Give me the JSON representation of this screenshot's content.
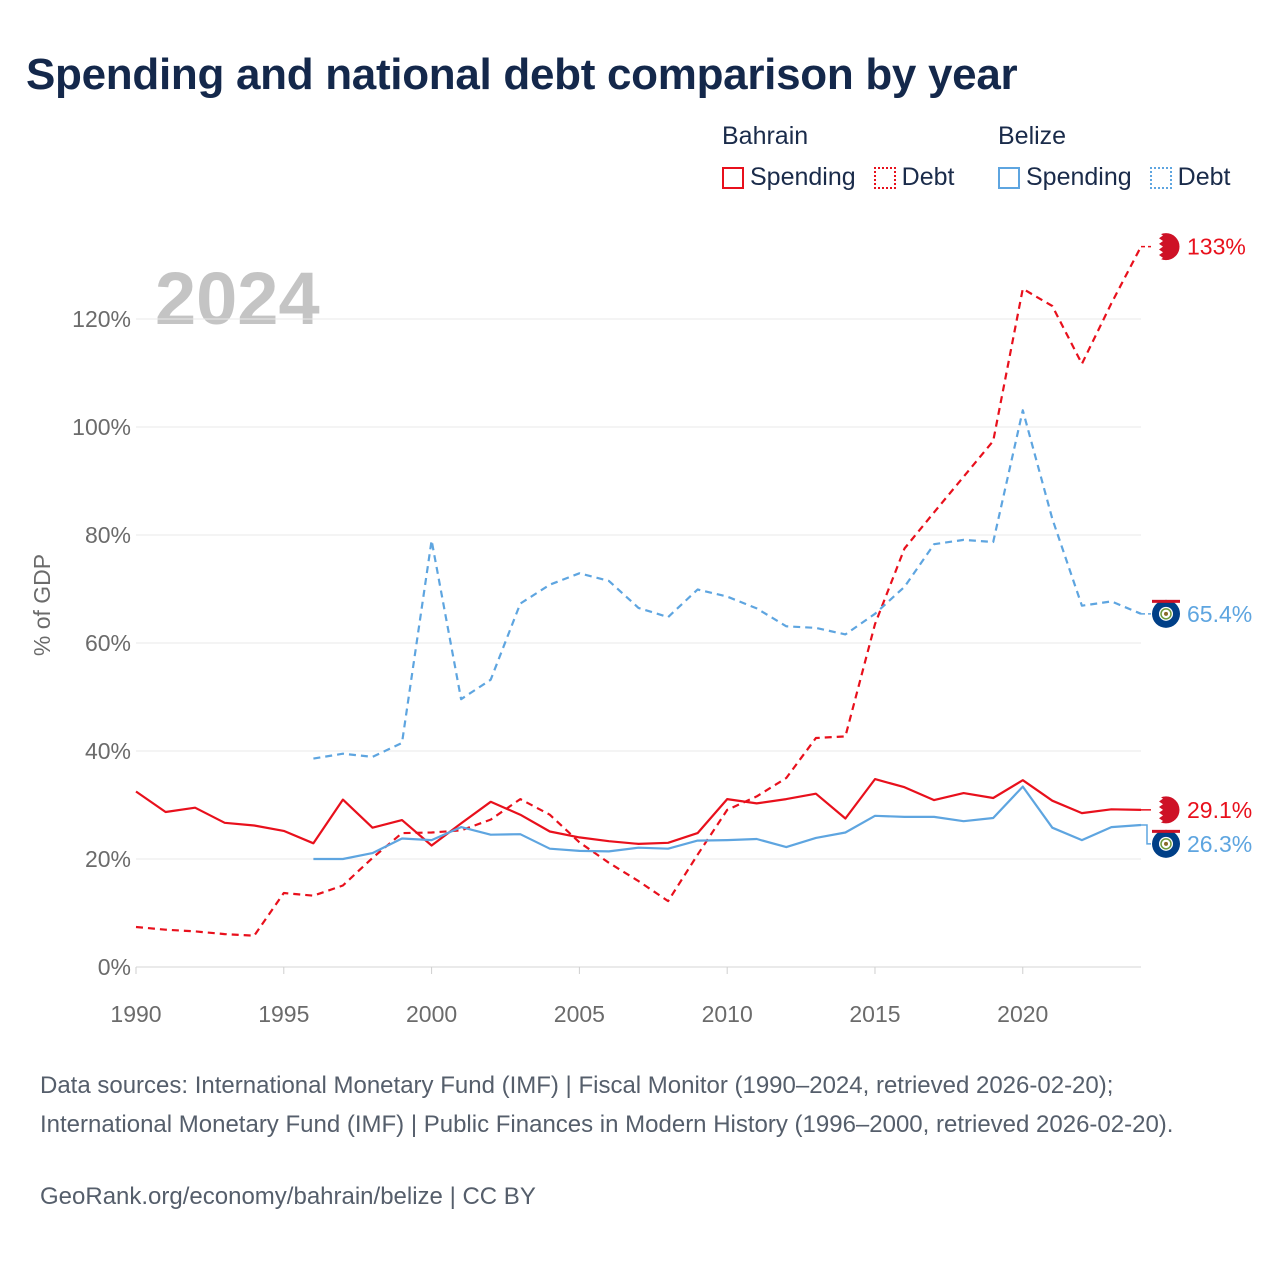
{
  "title": "Spending and national debt comparison by year",
  "legend": {
    "groups": [
      {
        "name": "Bahrain",
        "color": "#e8101c",
        "items": [
          {
            "label": "Spending",
            "style": "solid"
          },
          {
            "label": "Debt",
            "style": "dotted"
          }
        ]
      },
      {
        "name": "Belize",
        "color": "#5ea5e0",
        "items": [
          {
            "label": "Spending",
            "style": "solid"
          },
          {
            "label": "Debt",
            "style": "dotted"
          }
        ]
      }
    ]
  },
  "year_watermark": "2024",
  "footer": {
    "sources": "Data sources: International Monetary Fund (IMF) | Fiscal Monitor (1990–2024, retrieved 2026-02-20); International Monetary Fund (IMF) | Public Finances in Modern History (1996–2000, retrieved 2026-02-20).",
    "credit": "GeoRank.org/economy/bahrain/belize | CC BY"
  },
  "chart_data": {
    "type": "line",
    "title": "Spending and national debt comparison by year",
    "xlabel": "",
    "ylabel": "% of GDP",
    "xlim": [
      1990,
      2024
    ],
    "ylim": [
      0,
      135
    ],
    "x_ticks": [
      1990,
      1995,
      2000,
      2005,
      2010,
      2015,
      2020
    ],
    "y_ticks": [
      0,
      20,
      40,
      60,
      80,
      100,
      120
    ],
    "y_tick_labels": [
      "0%",
      "20%",
      "40%",
      "60%",
      "80%",
      "100%",
      "120%"
    ],
    "grid": "horizontal",
    "series": [
      {
        "name": "Bahrain Debt",
        "country": "Bahrain",
        "metric": "Debt",
        "color": "#e8101c",
        "dash": true,
        "end_label": "133%",
        "x": [
          1990,
          1991,
          1992,
          1993,
          1994,
          1995,
          1996,
          1997,
          1998,
          1999,
          2000,
          2001,
          2002,
          2003,
          2004,
          2005,
          2006,
          2007,
          2008,
          2009,
          2010,
          2011,
          2012,
          2013,
          2014,
          2015,
          2016,
          2017,
          2018,
          2019,
          2020,
          2021,
          2022,
          2023,
          2024
        ],
        "values": [
          7.4,
          6.9,
          6.6,
          6.1,
          5.8,
          13.7,
          13.2,
          15.1,
          20.2,
          24.8,
          24.9,
          25.3,
          27.3,
          31.1,
          28.2,
          23.1,
          19.3,
          15.9,
          12.2,
          20.8,
          29.1,
          31.6,
          35.0,
          42.4,
          42.7,
          63.5,
          77.5,
          84.2,
          90.8,
          97.4,
          125.6,
          122.4,
          111.7,
          122.9,
          133.4
        ]
      },
      {
        "name": "Bahrain Spending",
        "country": "Bahrain",
        "metric": "Spending",
        "color": "#e8101c",
        "dash": false,
        "end_label": "29.1%",
        "x": [
          1990,
          1991,
          1992,
          1993,
          1994,
          1995,
          1996,
          1997,
          1998,
          1999,
          2000,
          2001,
          2002,
          2003,
          2004,
          2005,
          2006,
          2007,
          2008,
          2009,
          2010,
          2011,
          2012,
          2013,
          2014,
          2015,
          2016,
          2017,
          2018,
          2019,
          2020,
          2021,
          2022,
          2023,
          2024
        ],
        "values": [
          32.5,
          28.7,
          29.5,
          26.7,
          26.2,
          25.2,
          22.9,
          31.0,
          25.8,
          27.2,
          22.5,
          26.6,
          30.6,
          28.2,
          25.1,
          24.0,
          23.3,
          22.8,
          23.0,
          24.8,
          31.1,
          30.3,
          31.1,
          32.1,
          27.5,
          34.8,
          33.3,
          30.9,
          32.2,
          31.3,
          34.6,
          30.8,
          28.5,
          29.2,
          29.1
        ]
      },
      {
        "name": "Belize Debt",
        "country": "Belize",
        "metric": "Debt",
        "color": "#5ea5e0",
        "dash": true,
        "end_label": "65.4%",
        "x": [
          1996,
          1997,
          1998,
          1999,
          2000,
          2001,
          2002,
          2003,
          2004,
          2005,
          2006,
          2007,
          2008,
          2009,
          2010,
          2011,
          2012,
          2013,
          2014,
          2015,
          2016,
          2017,
          2018,
          2019,
          2020,
          2021,
          2022,
          2023,
          2024
        ],
        "values": [
          38.6,
          39.5,
          38.9,
          41.5,
          79.0,
          49.6,
          53.2,
          67.3,
          70.8,
          72.9,
          71.5,
          66.5,
          64.8,
          69.9,
          68.6,
          66.4,
          63.1,
          62.8,
          61.6,
          65.4,
          70.4,
          78.3,
          79.1,
          78.7,
          103.1,
          83.0,
          66.9,
          67.7,
          65.4
        ]
      },
      {
        "name": "Belize Spending",
        "country": "Belize",
        "metric": "Spending",
        "color": "#5ea5e0",
        "dash": false,
        "end_label": "26.3%",
        "x": [
          1996,
          1997,
          1998,
          1999,
          2000,
          2001,
          2002,
          2003,
          2004,
          2005,
          2006,
          2007,
          2008,
          2009,
          2010,
          2011,
          2012,
          2013,
          2014,
          2015,
          2016,
          2017,
          2018,
          2019,
          2020,
          2021,
          2022,
          2023,
          2024
        ],
        "values": [
          20.0,
          20.0,
          21.1,
          23.8,
          23.5,
          25.9,
          24.5,
          24.6,
          21.9,
          21.5,
          21.4,
          22.1,
          21.9,
          23.4,
          23.5,
          23.7,
          22.2,
          23.9,
          24.9,
          28.0,
          27.8,
          27.8,
          27.0,
          27.6,
          33.4,
          25.8,
          23.5,
          25.9,
          26.3
        ]
      }
    ]
  }
}
